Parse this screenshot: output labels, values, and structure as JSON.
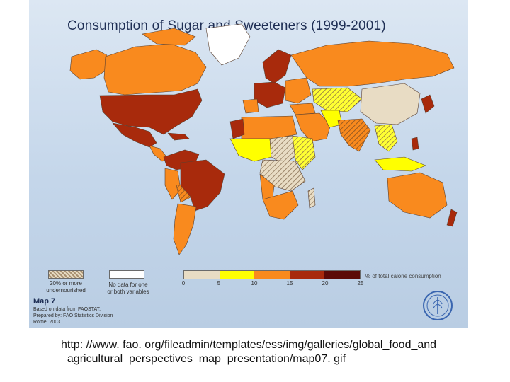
{
  "title": "Consumption of  Sugar and Sweeteners  (1999-2001)",
  "legend": {
    "hatched_label_line1": "20% or more",
    "hatched_label_line2": "undernourished",
    "nodata_label_line1": "No data for one",
    "nodata_label_line2": "or both variables",
    "scale_title": "% of total calorie consumption",
    "scale_ticks": [
      "0",
      "5",
      "10",
      "15",
      "20",
      "25"
    ],
    "scale_colors": [
      "#e8dcc4",
      "#ffff00",
      "#f98a1e",
      "#a82a0c",
      "#5c0a06"
    ]
  },
  "map_number": "Map 7",
  "source_line1": "Based on data from FAOSTAT.",
  "source_line2": "Prepared by: FAO Statistics Division",
  "source_line3": "Rome, 2003",
  "logo_text": "FAO",
  "url_line1": "http: //www. fao. org/fileadmin/templates/ess/img/galleries/global_food_and",
  "url_line2": "_agricultural_perspectives_map_presentation/map07. gif"
}
